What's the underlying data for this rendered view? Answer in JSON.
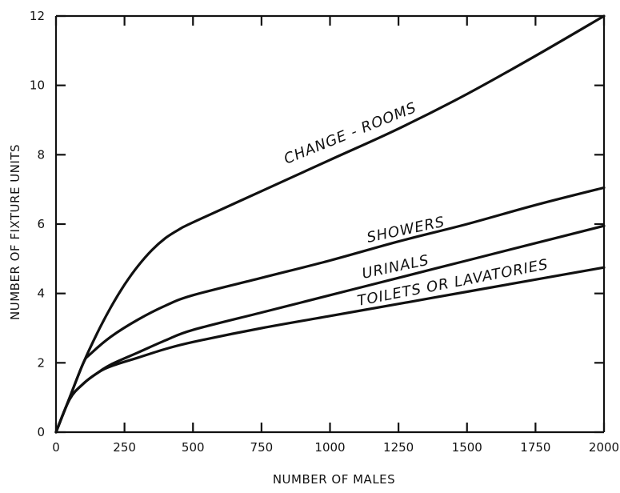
{
  "chart_data": {
    "type": "line",
    "title": "",
    "xlabel": "NUMBER OF MALES",
    "ylabel": "NUMBER OF FIXTURE UNITS",
    "xlim": [
      0,
      2000
    ],
    "ylim": [
      0,
      12
    ],
    "xticks": [
      0,
      250,
      500,
      750,
      1000,
      1250,
      1500,
      1750,
      2000
    ],
    "xtick_labels": [
      "0",
      "250",
      "500",
      "750",
      "1000",
      "1250",
      "1500",
      "1750",
      "2000"
    ],
    "yticks": [
      0,
      2,
      4,
      6,
      8,
      10,
      12
    ],
    "ytick_labels": [
      "0",
      "2",
      "4",
      "6",
      "8",
      "10",
      "12"
    ],
    "grid": false,
    "legend": "none",
    "series": [
      {
        "name": "CHANGE - ROOMS",
        "x": [
          0,
          50,
          100,
          150,
          200,
          250,
          300,
          350,
          400,
          450,
          500,
          750,
          1000,
          1250,
          1500,
          1750,
          2000
        ],
        "y": [
          0,
          1.0,
          2.0,
          2.85,
          3.6,
          4.25,
          4.8,
          5.25,
          5.6,
          5.85,
          6.05,
          6.95,
          7.85,
          8.75,
          9.75,
          10.85,
          12.0
        ]
      },
      {
        "name": "SHOWERS",
        "x": [
          0,
          50,
          100,
          125,
          200,
          300,
          400,
          500,
          750,
          1000,
          1250,
          1500,
          1750,
          2000
        ],
        "y": [
          0,
          1.0,
          2.0,
          2.25,
          2.75,
          3.25,
          3.65,
          3.95,
          4.45,
          4.95,
          5.5,
          6.0,
          6.55,
          7.05
        ]
      },
      {
        "name": "URINALS",
        "x": [
          0,
          50,
          100,
          150,
          200,
          300,
          400,
          500,
          750,
          1000,
          1250,
          1500,
          1750,
          2000
        ],
        "y": [
          0,
          0.95,
          1.4,
          1.7,
          1.95,
          2.3,
          2.65,
          2.95,
          3.45,
          3.95,
          4.45,
          4.95,
          5.45,
          5.95
        ]
      },
      {
        "name": "TOILETS OR LAVATORIES",
        "x": [
          0,
          50,
          100,
          150,
          200,
          300,
          400,
          500,
          750,
          1000,
          1250,
          1500,
          1750,
          2000
        ],
        "y": [
          0,
          0.95,
          1.4,
          1.7,
          1.9,
          2.15,
          2.4,
          2.6,
          3.0,
          3.35,
          3.7,
          4.05,
          4.4,
          4.75
        ]
      }
    ]
  }
}
